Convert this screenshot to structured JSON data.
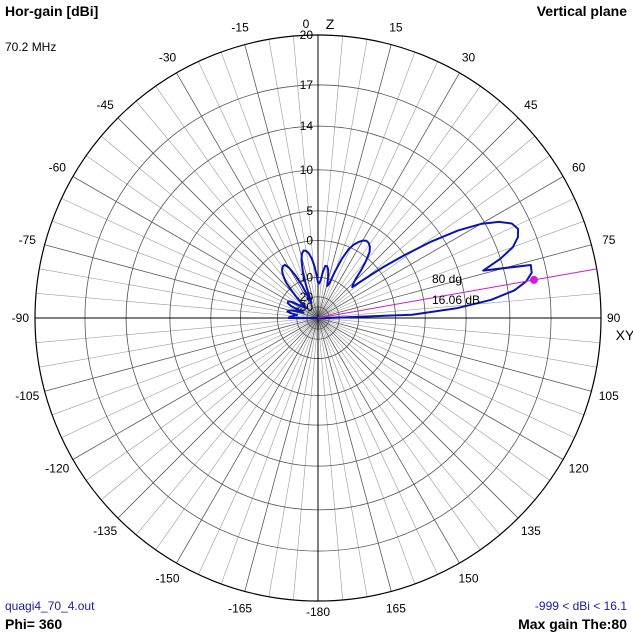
{
  "header": {
    "left_title": "Hor-gain [dBi]",
    "right_title": "Vertical plane",
    "frequency": "70.2 MHz"
  },
  "footer": {
    "filename": "quagi4_70_4.out",
    "range": "-999 < dBi < 16.1",
    "phi": "Phi= 360",
    "max_gain": "Max gain The:80"
  },
  "colors": {
    "pattern": "#0a14b4",
    "marker": "#d21ed2",
    "grid_major": "#000000",
    "grid_minor": "#9a9a9a"
  },
  "chart_data": {
    "type": "polar",
    "title": "Vertical plane",
    "axis_labels": {
      "top": "Z",
      "right": "XY"
    },
    "rlabel": "Hor-gain [dBi]",
    "angle_ticks": [
      "0",
      "15",
      "30",
      "45",
      "60",
      "75",
      "90",
      "105",
      "120",
      "135",
      "150",
      "165",
      "-180",
      "-165",
      "-150",
      "-135",
      "-120",
      "-105",
      "-90",
      "-75",
      "-60",
      "-45",
      "-30",
      "-15"
    ],
    "angle_tick_values": [
      0,
      15,
      30,
      45,
      60,
      75,
      90,
      105,
      120,
      135,
      150,
      165,
      180,
      195,
      210,
      225,
      240,
      255,
      270,
      285,
      300,
      315,
      330,
      345
    ],
    "radial_ticks": [
      "20",
      "17",
      "14",
      "10",
      "5",
      "0",
      "-10",
      "-20",
      "-30"
    ],
    "radial_tick_values": [
      20,
      17,
      14,
      10,
      5,
      0,
      -10,
      -20,
      -30
    ],
    "gain_range": [
      -999,
      16.1
    ],
    "max_gain": {
      "theta_deg": 80,
      "gain_dbi": 16.06,
      "angle_label": "80 dg",
      "gain_label": "16.06 dB"
    },
    "series": [
      {
        "theta_deg": [
          -90,
          -88,
          -85,
          -82,
          -80,
          -78,
          -76,
          -74,
          -72,
          -70,
          -68,
          -66,
          -64,
          -62,
          -60,
          -58,
          -55,
          -52,
          -50,
          -48,
          -46,
          -44,
          -42,
          -40,
          -38,
          -36,
          -34,
          -32,
          -30,
          -28,
          -26,
          -24,
          -22,
          -20,
          -18,
          -16,
          -14,
          -12,
          -10,
          -8,
          -6,
          -4,
          -2,
          0,
          2,
          4,
          6,
          8,
          10,
          12,
          14,
          16,
          18,
          20,
          22,
          24,
          26,
          28,
          30,
          32,
          34,
          36,
          38,
          40,
          42,
          44,
          46,
          48,
          50,
          52,
          54,
          56,
          58,
          60,
          62,
          64,
          66,
          68,
          70,
          72,
          74,
          76,
          78,
          80,
          82,
          84,
          86,
          88,
          90
        ],
        "gain_dbi": [
          -15,
          -15.5,
          -18,
          -20,
          -16,
          -14,
          -14.5,
          -16,
          -20,
          -25,
          -20,
          -15,
          -13,
          -12.7,
          -13,
          -15,
          -20,
          -24,
          -25,
          -20,
          -15,
          -11,
          -7.5,
          -5.8,
          -4.5,
          -3.7,
          -3.3,
          -3.3,
          -4.4,
          -7.2,
          -12,
          -24,
          -20,
          -12,
          -7,
          -4,
          -2.4,
          -1.8,
          -2,
          -2.7,
          -4,
          -6,
          -9,
          -12,
          -12.5,
          -11,
          -8,
          -6,
          -6,
          -7,
          -9.5,
          -13,
          -12,
          -7,
          -3,
          -0.5,
          0.8,
          1.6,
          2.2,
          2.5,
          2.4,
          2,
          1.2,
          -0.5,
          -2.8,
          -5.5,
          -7.2,
          -8,
          -4,
          1,
          5,
          8.8,
          11.7,
          13.7,
          15,
          15.8,
          16.04,
          15.8,
          15.2,
          14,
          12.3,
          16.06,
          16,
          15.5,
          14.5,
          12.5,
          9,
          3,
          -30
        ]
      }
    ]
  }
}
